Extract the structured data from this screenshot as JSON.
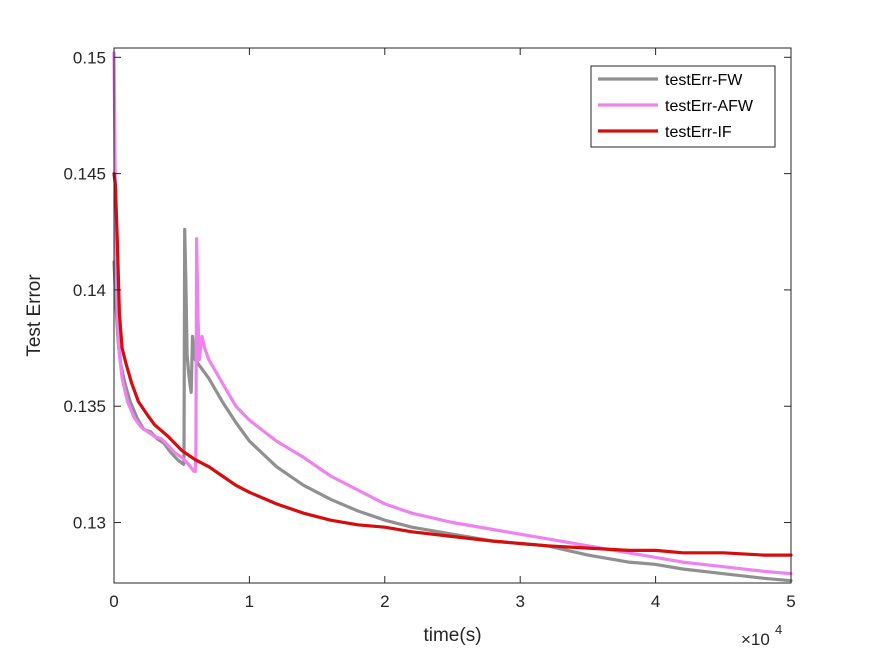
{
  "chart_data": {
    "type": "line",
    "xlabel": "time(s)",
    "ylabel": "Test Error",
    "x_exponent_label": "×10",
    "x_exponent_power": "4",
    "x_multiplier": 10000,
    "xlim": [
      0,
      50000
    ],
    "ylim": [
      0.1274,
      0.1504
    ],
    "xticks": [
      0,
      10000,
      20000,
      30000,
      40000,
      50000
    ],
    "xtick_labels": [
      "0",
      "1",
      "2",
      "3",
      "4",
      "5"
    ],
    "yticks": [
      0.13,
      0.135,
      0.14,
      0.145,
      0.15
    ],
    "ytick_labels": [
      "0.13",
      "0.135",
      "0.14",
      "0.145",
      "0.15"
    ],
    "grid": false,
    "legend_position": "top-right",
    "series": [
      {
        "name": "testErr-FW",
        "color": "#909090",
        "x": [
          0,
          150,
          300,
          500,
          800,
          1200,
          1700,
          2200,
          2700,
          3200,
          3700,
          4200,
          4700,
          5150,
          5170,
          5220,
          5300,
          5400,
          5500,
          5600,
          5700,
          5800,
          5900,
          6000,
          6500,
          7000,
          8000,
          9000,
          10000,
          12000,
          14000,
          16000,
          18000,
          20000,
          22000,
          25000,
          28000,
          30000,
          32000,
          35000,
          38000,
          40000,
          42000,
          45000,
          48000,
          50000
        ],
        "y": [
          0.1412,
          0.1393,
          0.1378,
          0.1368,
          0.136,
          0.1352,
          0.1345,
          0.134,
          0.1339,
          0.1336,
          0.1334,
          0.133,
          0.1327,
          0.1325,
          0.1329,
          0.1426,
          0.1405,
          0.1372,
          0.1365,
          0.136,
          0.1356,
          0.138,
          0.1375,
          0.137,
          0.1366,
          0.1362,
          0.1352,
          0.1343,
          0.1335,
          0.1324,
          0.1316,
          0.131,
          0.1305,
          0.1301,
          0.1298,
          0.1295,
          0.1292,
          0.1291,
          0.129,
          0.1286,
          0.1283,
          0.1282,
          0.128,
          0.1278,
          0.1276,
          0.1275
        ]
      },
      {
        "name": "testErr-AFW",
        "color": "#ee82ee",
        "x": [
          0,
          100,
          200,
          350,
          600,
          1000,
          1500,
          2000,
          2500,
          3000,
          3500,
          4000,
          4500,
          5000,
          5500,
          5900,
          6000,
          6050,
          6100,
          6200,
          6300,
          6500,
          6700,
          7000,
          7500,
          8000,
          9000,
          10000,
          12000,
          14000,
          16000,
          18000,
          20000,
          22000,
          25000,
          28000,
          30000,
          32000,
          35000,
          38000,
          40000,
          42000,
          45000,
          48000,
          50000
        ],
        "y": [
          0.1502,
          0.144,
          0.14,
          0.1375,
          0.1362,
          0.1352,
          0.1345,
          0.1341,
          0.1339,
          0.1337,
          0.1336,
          0.1333,
          0.133,
          0.1328,
          0.1325,
          0.1322,
          0.1322,
          0.133,
          0.1422,
          0.139,
          0.137,
          0.138,
          0.1375,
          0.137,
          0.1365,
          0.136,
          0.135,
          0.1344,
          0.1335,
          0.1328,
          0.132,
          0.1314,
          0.1308,
          0.1304,
          0.13,
          0.1297,
          0.1295,
          0.1293,
          0.129,
          0.1287,
          0.1285,
          0.1283,
          0.1281,
          0.1279,
          0.1278
        ]
      },
      {
        "name": "testErr-IF",
        "color": "#d40d0d",
        "x": [
          0,
          100,
          250,
          400,
          600,
          900,
          1300,
          1800,
          2500,
          3000,
          4000,
          5000,
          6000,
          7000,
          8000,
          9000,
          10000,
          12000,
          14000,
          16000,
          18000,
          20000,
          22000,
          25000,
          28000,
          30000,
          32000,
          35000,
          38000,
          40000,
          42000,
          45000,
          48000,
          50000
        ],
        "y": [
          0.145,
          0.1445,
          0.142,
          0.139,
          0.1375,
          0.1368,
          0.136,
          0.1352,
          0.1346,
          0.1342,
          0.1337,
          0.1331,
          0.1327,
          0.1324,
          0.132,
          0.1316,
          0.1313,
          0.1308,
          0.1304,
          0.1301,
          0.1299,
          0.1298,
          0.1296,
          0.1294,
          0.1292,
          0.1291,
          0.129,
          0.1289,
          0.1288,
          0.1288,
          0.1287,
          0.1287,
          0.1286,
          0.1286
        ]
      }
    ]
  }
}
